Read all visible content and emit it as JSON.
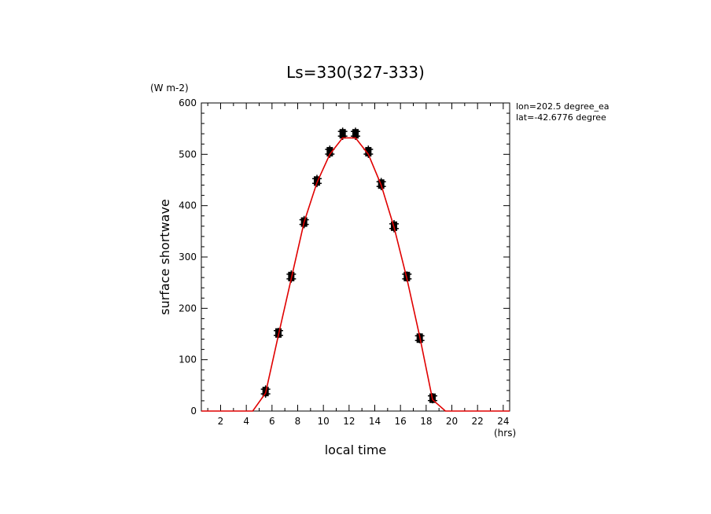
{
  "chart_data": {
    "type": "line",
    "title": "Ls=330(327-333)",
    "xlabel": "local time",
    "xunit": "(hrs)",
    "ylabel": "surface shortwave",
    "yunit": "(W m-2)",
    "xlim": [
      0.5,
      24.5
    ],
    "ylim": [
      0,
      600
    ],
    "xticks": [
      2,
      4,
      6,
      8,
      10,
      12,
      14,
      16,
      18,
      20,
      22,
      24
    ],
    "yticks": [
      0,
      100,
      200,
      300,
      400,
      500,
      600
    ],
    "annotation": [
      "lon=202.5 degree_ea",
      "lat=-42.6776 degree"
    ],
    "series": [
      {
        "style": "black markers with error bars",
        "color": "#000000",
        "x": [
          5.5,
          6.5,
          7.5,
          8.5,
          9.5,
          10.5,
          11.5,
          12.5,
          13.5,
          14.5,
          15.5,
          16.5,
          17.5,
          18.5
        ],
        "y": [
          38,
          152,
          262,
          368,
          448,
          505,
          540,
          540,
          505,
          442,
          360,
          262,
          142,
          25
        ],
        "err": [
          12,
          10,
          12,
          12,
          12,
          12,
          12,
          12,
          12,
          12,
          12,
          10,
          10,
          10
        ]
      },
      {
        "style": "red line",
        "color": "#e00000",
        "x": [
          0.5,
          1.5,
          2.5,
          3.5,
          4.5,
          5.5,
          6.5,
          7.5,
          8.5,
          9.5,
          10.5,
          11.5,
          12.5,
          13.5,
          14.5,
          15.5,
          16.5,
          17.5,
          18.5,
          19.5,
          20.5,
          21.5,
          22.5,
          23.5,
          24.5
        ],
        "y": [
          0,
          0,
          0,
          0,
          0,
          35,
          148,
          258,
          368,
          445,
          500,
          532,
          532,
          500,
          440,
          358,
          258,
          145,
          22,
          0,
          0,
          0,
          0,
          0,
          0
        ]
      }
    ]
  }
}
